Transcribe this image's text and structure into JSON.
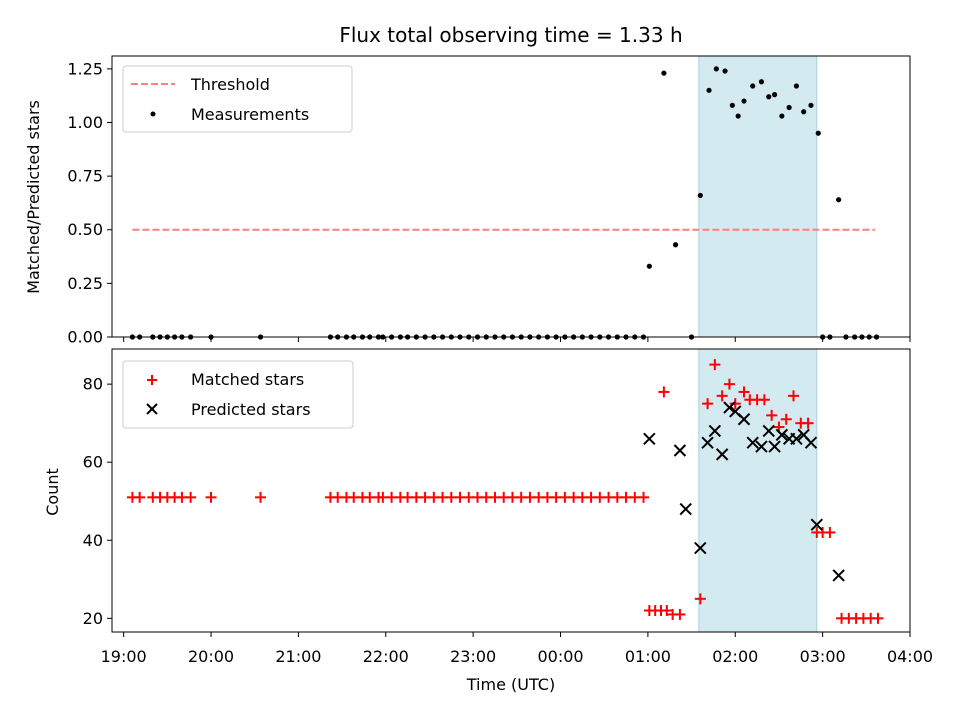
{
  "chart_data": [
    {
      "type": "scatter",
      "title": "Flux total observing time = 1.33 h",
      "ylabel": "Matched/Predicted stars",
      "xlim": [
        "18:52",
        "04:00"
      ],
      "ylim": [
        0,
        1.31
      ],
      "yticks": [
        0.0,
        0.25,
        0.5,
        0.75,
        1.0,
        1.25
      ],
      "ytick_labels": [
        "0.00",
        "0.25",
        "0.50",
        "0.75",
        "1.00",
        "1.25"
      ],
      "legend_position": "upper-left",
      "shaded_interval": [
        "01:35",
        "02:56"
      ],
      "shade_color": "#d3eaf1",
      "threshold": {
        "name": "Threshold",
        "value": 0.5,
        "x_range": [
          "19:06",
          "03:36"
        ],
        "color": "#ff7f7f",
        "style": "dashed"
      },
      "series": [
        {
          "name": "Measurements",
          "marker": "dot",
          "color": "#000000",
          "points": [
            [
              "19:06",
              0
            ],
            [
              "19:11",
              0
            ],
            [
              "19:20",
              0
            ],
            [
              "19:25",
              0
            ],
            [
              "19:30",
              0
            ],
            [
              "19:35",
              0
            ],
            [
              "19:40",
              0
            ],
            [
              "19:46",
              0
            ],
            [
              "20:00",
              0
            ],
            [
              "20:34",
              0
            ],
            [
              "21:22",
              0
            ],
            [
              "21:27",
              0
            ],
            [
              "21:33",
              0
            ],
            [
              "21:38",
              0
            ],
            [
              "21:44",
              0
            ],
            [
              "21:49",
              0
            ],
            [
              "21:55",
              0
            ],
            [
              "21:58",
              0
            ],
            [
              "22:04",
              0
            ],
            [
              "22:10",
              0
            ],
            [
              "22:15",
              0
            ],
            [
              "22:21",
              0
            ],
            [
              "22:27",
              0
            ],
            [
              "22:33",
              0
            ],
            [
              "22:39",
              0
            ],
            [
              "22:45",
              0
            ],
            [
              "22:51",
              0
            ],
            [
              "22:57",
              0
            ],
            [
              "23:03",
              0
            ],
            [
              "23:09",
              0
            ],
            [
              "23:15",
              0
            ],
            [
              "23:21",
              0
            ],
            [
              "23:27",
              0
            ],
            [
              "23:33",
              0
            ],
            [
              "23:39",
              0
            ],
            [
              "23:45",
              0
            ],
            [
              "23:51",
              0
            ],
            [
              "23:57",
              0
            ],
            [
              "00:03",
              0
            ],
            [
              "00:09",
              0
            ],
            [
              "00:15",
              0
            ],
            [
              "00:21",
              0
            ],
            [
              "00:27",
              0
            ],
            [
              "00:33",
              0
            ],
            [
              "00:39",
              0
            ],
            [
              "00:45",
              0
            ],
            [
              "00:51",
              0
            ],
            [
              "00:57",
              0
            ],
            [
              "01:01",
              0.33
            ],
            [
              "01:11",
              1.23
            ],
            [
              "01:19",
              0.43
            ],
            [
              "01:30",
              0
            ],
            [
              "01:36",
              0.66
            ],
            [
              "01:42",
              1.15
            ],
            [
              "01:47",
              1.25
            ],
            [
              "01:53",
              1.24
            ],
            [
              "01:58",
              1.08
            ],
            [
              "02:02",
              1.03
            ],
            [
              "02:06",
              1.1
            ],
            [
              "02:12",
              1.17
            ],
            [
              "02:18",
              1.19
            ],
            [
              "02:23",
              1.12
            ],
            [
              "02:27",
              1.13
            ],
            [
              "02:32",
              1.03
            ],
            [
              "02:37",
              1.07
            ],
            [
              "02:42",
              1.17
            ],
            [
              "02:47",
              1.05
            ],
            [
              "02:52",
              1.08
            ],
            [
              "02:57",
              0.95
            ],
            [
              "03:00",
              0
            ],
            [
              "03:05",
              0
            ],
            [
              "03:11",
              0.64
            ],
            [
              "03:16",
              0
            ],
            [
              "03:22",
              0
            ],
            [
              "03:27",
              0
            ],
            [
              "03:32",
              0
            ],
            [
              "03:37",
              0
            ]
          ]
        }
      ]
    },
    {
      "type": "scatter",
      "xlabel": "Time (UTC)",
      "ylabel": "Count",
      "xlim": [
        "18:52",
        "04:00"
      ],
      "ylim": [
        16.5,
        89
      ],
      "yticks": [
        20,
        40,
        60,
        80
      ],
      "xticks": [
        "19:00",
        "20:00",
        "21:00",
        "22:00",
        "23:00",
        "00:00",
        "01:00",
        "02:00",
        "03:00",
        "04:00"
      ],
      "legend_position": "upper-left",
      "shaded_interval": [
        "01:35",
        "02:56"
      ],
      "shade_color": "#d3eaf1",
      "series": [
        {
          "name": "Matched stars",
          "marker": "plus",
          "color": "#ff0000",
          "points": [
            [
              "19:06",
              51
            ],
            [
              "19:11",
              51
            ],
            [
              "19:20",
              51
            ],
            [
              "19:25",
              51
            ],
            [
              "19:30",
              51
            ],
            [
              "19:35",
              51
            ],
            [
              "19:40",
              51
            ],
            [
              "19:46",
              51
            ],
            [
              "20:00",
              51
            ],
            [
              "20:34",
              51
            ],
            [
              "21:22",
              51
            ],
            [
              "21:27",
              51
            ],
            [
              "21:33",
              51
            ],
            [
              "21:38",
              51
            ],
            [
              "21:44",
              51
            ],
            [
              "21:49",
              51
            ],
            [
              "21:55",
              51
            ],
            [
              "21:58",
              51
            ],
            [
              "22:04",
              51
            ],
            [
              "22:10",
              51
            ],
            [
              "22:15",
              51
            ],
            [
              "22:21",
              51
            ],
            [
              "22:27",
              51
            ],
            [
              "22:33",
              51
            ],
            [
              "22:39",
              51
            ],
            [
              "22:45",
              51
            ],
            [
              "22:51",
              51
            ],
            [
              "22:57",
              51
            ],
            [
              "23:03",
              51
            ],
            [
              "23:09",
              51
            ],
            [
              "23:15",
              51
            ],
            [
              "23:21",
              51
            ],
            [
              "23:27",
              51
            ],
            [
              "23:33",
              51
            ],
            [
              "23:39",
              51
            ],
            [
              "23:45",
              51
            ],
            [
              "23:51",
              51
            ],
            [
              "23:57",
              51
            ],
            [
              "00:03",
              51
            ],
            [
              "00:09",
              51
            ],
            [
              "00:15",
              51
            ],
            [
              "00:21",
              51
            ],
            [
              "00:27",
              51
            ],
            [
              "00:33",
              51
            ],
            [
              "00:39",
              51
            ],
            [
              "00:45",
              51
            ],
            [
              "00:51",
              51
            ],
            [
              "00:57",
              51
            ],
            [
              "01:01",
              22
            ],
            [
              "01:05",
              22
            ],
            [
              "01:09",
              22
            ],
            [
              "01:13",
              22
            ],
            [
              "01:11",
              78
            ],
            [
              "01:17",
              21
            ],
            [
              "01:22",
              21
            ],
            [
              "01:36",
              25
            ],
            [
              "01:41",
              75
            ],
            [
              "01:46",
              85
            ],
            [
              "01:51",
              77
            ],
            [
              "01:56",
              80
            ],
            [
              "02:00",
              75
            ],
            [
              "02:06",
              78
            ],
            [
              "02:10",
              76
            ],
            [
              "02:15",
              76
            ],
            [
              "02:20",
              76
            ],
            [
              "02:25",
              72
            ],
            [
              "02:30",
              69
            ],
            [
              "02:35",
              71
            ],
            [
              "02:40",
              77
            ],
            [
              "02:45",
              70
            ],
            [
              "02:50",
              70
            ],
            [
              "02:56",
              42
            ],
            [
              "03:00",
              42
            ],
            [
              "03:05",
              42
            ],
            [
              "03:13",
              20
            ],
            [
              "03:18",
              20
            ],
            [
              "03:23",
              20
            ],
            [
              "03:28",
              20
            ],
            [
              "03:33",
              20
            ],
            [
              "03:38",
              20
            ]
          ]
        },
        {
          "name": "Predicted stars",
          "marker": "x",
          "color": "#000000",
          "points": [
            [
              "01:01",
              66
            ],
            [
              "01:22",
              63
            ],
            [
              "01:26",
              48
            ],
            [
              "01:36",
              38
            ],
            [
              "01:41",
              65
            ],
            [
              "01:46",
              68
            ],
            [
              "01:51",
              62
            ],
            [
              "01:56",
              74
            ],
            [
              "02:00",
              73
            ],
            [
              "02:06",
              71
            ],
            [
              "02:12",
              65
            ],
            [
              "02:18",
              64
            ],
            [
              "02:23",
              68
            ],
            [
              "02:27",
              64
            ],
            [
              "02:32",
              67
            ],
            [
              "02:37",
              66
            ],
            [
              "02:42",
              66
            ],
            [
              "02:47",
              67
            ],
            [
              "02:52",
              65
            ],
            [
              "02:56",
              44
            ],
            [
              "03:11",
              31
            ]
          ]
        }
      ]
    }
  ]
}
